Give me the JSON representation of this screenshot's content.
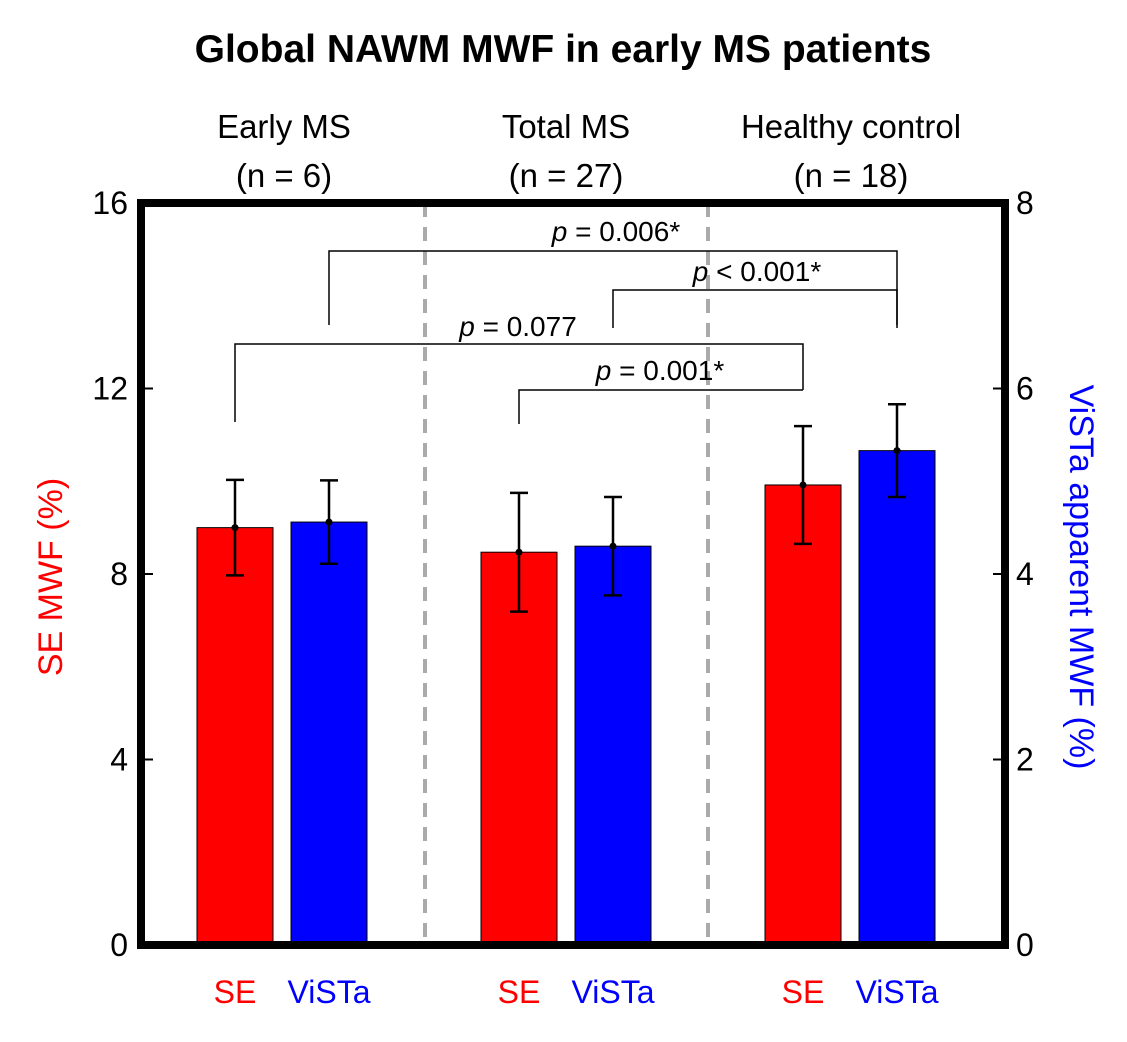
{
  "chart_data": {
    "type": "bar",
    "title": "Global NAWM MWF in early MS patients",
    "groups": [
      {
        "label": "Early MS",
        "n_label": "(n = 6)",
        "bar_labels": [
          "SE",
          "ViSTa"
        ]
      },
      {
        "label": "Total MS",
        "n_label": "(n = 27)",
        "bar_labels": [
          "SE",
          "ViSTa"
        ]
      },
      {
        "label": "Healthy control",
        "n_label": "(n = 18)",
        "bar_labels": [
          "SE",
          "ViSTa"
        ]
      }
    ],
    "series": [
      {
        "name": "SE",
        "axis": "left",
        "color": "#ff0000",
        "values": [
          9.0,
          8.47,
          9.92
        ],
        "errors": [
          1.03,
          1.28,
          1.27
        ]
      },
      {
        "name": "ViSTa",
        "axis": "right",
        "color": "#0000ff",
        "values": [
          4.56,
          4.3,
          5.33
        ],
        "errors": [
          0.45,
          0.53,
          0.5
        ]
      }
    ],
    "y_left": {
      "label": "SE MWF (%)",
      "range": [
        0,
        16
      ],
      "ticks": [
        "0",
        "4",
        "8",
        "12",
        "16"
      ],
      "color": "#ff0000"
    },
    "y_right": {
      "label": "ViSTa apparent MWF (%)",
      "range": [
        0,
        8
      ],
      "ticks": [
        "0",
        "2",
        "4",
        "6",
        "8"
      ],
      "color": "#0000ff"
    },
    "annotations": [
      {
        "label_italic": "p",
        "label_rest": " = 0.006*"
      },
      {
        "label_italic": "p",
        "label_rest": " < 0.001*"
      },
      {
        "label_italic": "p",
        "label_rest": " = 0.077"
      },
      {
        "label_italic": "p",
        "label_rest": " = 0.001*"
      }
    ]
  }
}
